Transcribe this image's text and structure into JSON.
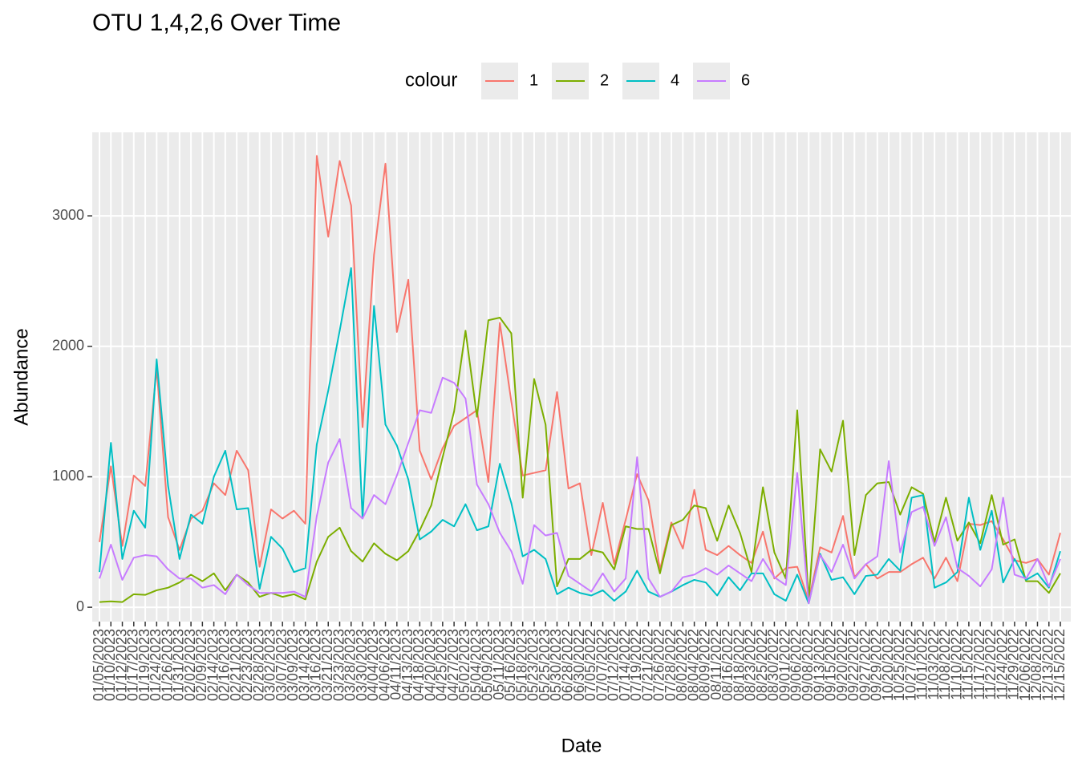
{
  "chart_data": {
    "type": "line",
    "title": "OTU 1,4,2,6 Over Time",
    "x_label": "Date",
    "y_label": "Abundance",
    "legend_title": "colour",
    "categories": [
      "01/05/2023",
      "01/10/2023",
      "01/12/2023",
      "01/17/2023",
      "01/19/2023",
      "01/24/2023",
      "01/26/2023",
      "01/31/2023",
      "02/02/2023",
      "02/09/2023",
      "02/14/2023",
      "02/16/2023",
      "02/21/2023",
      "02/23/2023",
      "02/28/2023",
      "03/02/2023",
      "03/07/2023",
      "03/09/2023",
      "03/14/2023",
      "03/16/2023",
      "03/21/2023",
      "03/23/2023",
      "03/28/2023",
      "03/30/2023",
      "04/04/2023",
      "04/06/2023",
      "04/11/2023",
      "04/13/2023",
      "04/18/2023",
      "04/20/2023",
      "04/25/2023",
      "04/27/2023",
      "05/02/2023",
      "05/04/2023",
      "05/09/2023",
      "05/11/2023",
      "05/16/2023",
      "05/18/2023",
      "05/23/2023",
      "05/25/2023",
      "05/30/2023",
      "06/28/2022",
      "06/30/2022",
      "07/05/2022",
      "07/07/2022",
      "07/12/2022",
      "07/14/2022",
      "07/19/2022",
      "07/21/2022",
      "07/26/2022",
      "07/28/2022",
      "08/02/2022",
      "08/04/2022",
      "08/09/2022",
      "08/11/2022",
      "08/16/2022",
      "08/18/2022",
      "08/23/2022",
      "08/25/2022",
      "08/30/2022",
      "09/01/2022",
      "09/06/2022",
      "09/08/2022",
      "09/13/2022",
      "09/15/2022",
      "09/20/2022",
      "09/22/2022",
      "09/27/2022",
      "09/29/2022",
      "10/20/2022",
      "10/25/2022",
      "10/27/2022",
      "11/01/2022",
      "11/03/2022",
      "11/08/2022",
      "11/10/2022",
      "11/15/2022",
      "11/17/2022",
      "11/22/2022",
      "11/24/2022",
      "11/29/2022",
      "12/06/2022",
      "12/08/2022",
      "12/13/2022",
      "12/15/2022"
    ],
    "series": [
      {
        "name": "1",
        "color": "#F8766D",
        "values": [
          500,
          1080,
          470,
          1010,
          930,
          1830,
          690,
          440,
          680,
          740,
          950,
          860,
          1200,
          1050,
          310,
          750,
          680,
          740,
          640,
          3460,
          2840,
          3420,
          3080,
          1380,
          2700,
          3400,
          2110,
          2510,
          1200,
          980,
          1220,
          1390,
          1450,
          1510,
          960,
          2180,
          1580,
          1010,
          1030,
          1050,
          1650,
          910,
          950,
          400,
          800,
          330,
          670,
          1020,
          820,
          290,
          650,
          450,
          900,
          440,
          400,
          470,
          400,
          340,
          580,
          220,
          300,
          310,
          50,
          460,
          420,
          700,
          230,
          330,
          220,
          270,
          270,
          330,
          380,
          220,
          380,
          200,
          640,
          630,
          660,
          520,
          360,
          340,
          370,
          250,
          570
        ]
      },
      {
        "name": "2",
        "color": "#7CAE00",
        "values": [
          40,
          45,
          40,
          100,
          95,
          130,
          150,
          190,
          250,
          200,
          260,
          130,
          250,
          190,
          80,
          110,
          80,
          100,
          60,
          350,
          540,
          610,
          430,
          350,
          490,
          410,
          360,
          430,
          590,
          780,
          1150,
          1500,
          2120,
          1460,
          2200,
          2220,
          2100,
          840,
          1750,
          1400,
          160,
          370,
          370,
          440,
          420,
          290,
          620,
          600,
          600,
          260,
          630,
          670,
          780,
          760,
          510,
          780,
          570,
          270,
          920,
          420,
          220,
          1510,
          60,
          1210,
          1040,
          1430,
          400,
          860,
          950,
          960,
          710,
          920,
          870,
          500,
          840,
          510,
          650,
          490,
          860,
          480,
          520,
          200,
          200,
          110,
          260
        ]
      },
      {
        "name": "4",
        "color": "#00BFC4",
        "values": [
          270,
          1260,
          370,
          740,
          610,
          1900,
          930,
          370,
          710,
          640,
          1000,
          1200,
          750,
          760,
          140,
          540,
          450,
          270,
          300,
          1250,
          1660,
          2120,
          2600,
          680,
          2310,
          1400,
          1240,
          980,
          520,
          580,
          670,
          620,
          790,
          590,
          620,
          1100,
          800,
          390,
          440,
          370,
          100,
          150,
          110,
          90,
          130,
          50,
          120,
          280,
          120,
          80,
          120,
          170,
          210,
          190,
          90,
          230,
          130,
          260,
          260,
          100,
          50,
          250,
          30,
          410,
          210,
          230,
          100,
          240,
          250,
          370,
          280,
          840,
          860,
          150,
          190,
          270,
          840,
          440,
          740,
          190,
          370,
          210,
          260,
          150,
          430
        ]
      },
      {
        "name": "6",
        "color": "#C77CFF",
        "values": [
          220,
          480,
          210,
          380,
          400,
          390,
          290,
          220,
          220,
          150,
          170,
          100,
          250,
          170,
          110,
          110,
          110,
          120,
          80,
          700,
          1110,
          1290,
          760,
          680,
          860,
          790,
          1010,
          1260,
          1510,
          1490,
          1760,
          1720,
          1600,
          940,
          790,
          570,
          430,
          180,
          630,
          550,
          570,
          240,
          180,
          120,
          260,
          120,
          220,
          1150,
          220,
          80,
          120,
          230,
          250,
          300,
          250,
          320,
          260,
          200,
          370,
          230,
          170,
          1030,
          30,
          400,
          270,
          480,
          220,
          330,
          390,
          1120,
          420,
          730,
          770,
          470,
          690,
          300,
          240,
          160,
          290,
          840,
          250,
          220,
          370,
          160,
          370
        ]
      }
    ],
    "ylim": [
      -110,
      3640
    ],
    "yticks": [
      0,
      1000,
      2000,
      3000
    ],
    "grid": true
  }
}
